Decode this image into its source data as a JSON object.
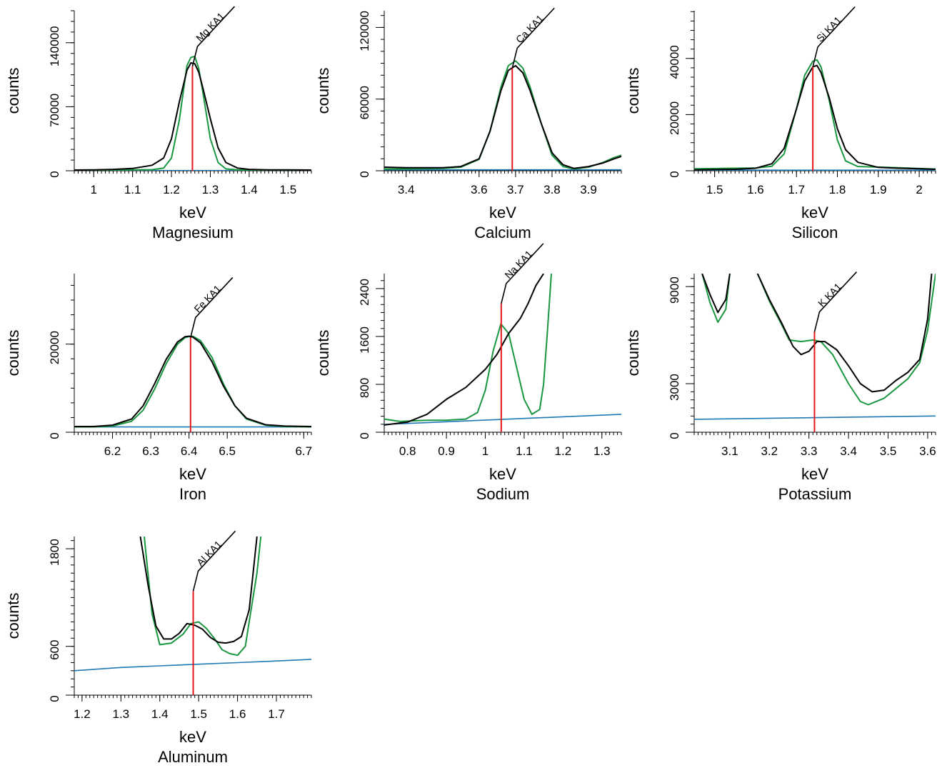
{
  "colors": {
    "measured": "#000000",
    "fit": "#1a9641",
    "background": "#1f77b4",
    "marker": "#e31a1c",
    "axis": "#000000"
  },
  "chart_data": [
    {
      "type": "line",
      "title": "Magnesium",
      "xlabel": "keV",
      "ylabel": "counts",
      "xlim": [
        0.95,
        1.56
      ],
      "ylim": [
        0,
        175000
      ],
      "xticks": [
        1,
        1.1,
        1.2,
        1.3,
        1.4,
        1.5
      ],
      "yticks": [
        0,
        70000,
        140000
      ],
      "line_label": "Mg KA1",
      "line_energy": 1.254,
      "line_height": 114000,
      "series": [
        {
          "name": "measured",
          "x": [
            0.95,
            1.0,
            1.05,
            1.1,
            1.15,
            1.18,
            1.2,
            1.22,
            1.24,
            1.25,
            1.26,
            1.27,
            1.28,
            1.3,
            1.32,
            1.34,
            1.37,
            1.4,
            1.45,
            1.5,
            1.56
          ],
          "y": [
            800,
            1000,
            1500,
            2500,
            6000,
            14000,
            35000,
            75000,
            110000,
            118000,
            117000,
            108000,
            92000,
            57000,
            25000,
            9000,
            3000,
            1500,
            1000,
            900,
            800
          ]
        },
        {
          "name": "fit",
          "x": [
            0.95,
            1.0,
            1.05,
            1.1,
            1.15,
            1.18,
            1.2,
            1.22,
            1.24,
            1.25,
            1.26,
            1.27,
            1.28,
            1.3,
            1.32,
            1.34,
            1.37,
            1.4,
            1.45,
            1.5,
            1.56
          ],
          "y": [
            500,
            700,
            800,
            900,
            1200,
            3000,
            14000,
            55000,
            115000,
            124000,
            125000,
            112000,
            88000,
            35000,
            9000,
            2000,
            900,
            800,
            800,
            700,
            600
          ]
        },
        {
          "name": "background",
          "x": [
            0.95,
            1.56
          ],
          "y": [
            200,
            200
          ]
        }
      ]
    },
    {
      "type": "line",
      "title": "Calcium",
      "xlabel": "keV",
      "ylabel": "counts",
      "xlim": [
        3.34,
        3.99
      ],
      "ylim": [
        0,
        134000
      ],
      "xticks": [
        3.4,
        3.6,
        3.7,
        3.8,
        3.9
      ],
      "yticks": [
        0,
        60000,
        120000
      ],
      "line_label": "Ca KA1",
      "line_energy": 3.691,
      "line_height": 86000,
      "series": [
        {
          "name": "measured",
          "x": [
            3.34,
            3.4,
            3.5,
            3.55,
            3.6,
            3.63,
            3.66,
            3.68,
            3.7,
            3.72,
            3.74,
            3.77,
            3.8,
            3.83,
            3.86,
            3.9,
            3.94,
            3.97,
            3.99
          ],
          "y": [
            3000,
            2500,
            2500,
            3500,
            10000,
            33000,
            67000,
            84000,
            88000,
            82000,
            67000,
            40000,
            15000,
            5000,
            2000,
            3500,
            6500,
            10000,
            12000
          ]
        },
        {
          "name": "fit",
          "x": [
            3.34,
            3.4,
            3.5,
            3.55,
            3.6,
            3.63,
            3.66,
            3.68,
            3.7,
            3.72,
            3.74,
            3.77,
            3.8,
            3.83,
            3.86,
            3.9,
            3.94,
            3.97,
            3.99
          ],
          "y": [
            1500,
            1500,
            2000,
            3000,
            9500,
            33000,
            70000,
            88000,
            92000,
            86000,
            70000,
            40000,
            13000,
            3500,
            1500,
            3000,
            7000,
            11000,
            13000
          ]
        },
        {
          "name": "background",
          "x": [
            3.34,
            3.99
          ],
          "y": [
            800,
            800
          ]
        }
      ]
    },
    {
      "type": "line",
      "title": "Silicon",
      "xlabel": "keV",
      "ylabel": "counts",
      "xlim": [
        1.45,
        2.04
      ],
      "ylim": [
        0,
        57000
      ],
      "xticks": [
        1.5,
        1.6,
        1.7,
        1.8,
        1.9,
        2
      ],
      "yticks": [
        0,
        20000,
        40000
      ],
      "line_label": "Si KA1",
      "line_energy": 1.74,
      "line_height": 37000,
      "series": [
        {
          "name": "measured",
          "x": [
            1.45,
            1.5,
            1.55,
            1.6,
            1.64,
            1.67,
            1.7,
            1.72,
            1.74,
            1.75,
            1.76,
            1.78,
            1.8,
            1.82,
            1.85,
            1.9,
            1.95,
            2.0,
            2.04
          ],
          "y": [
            300,
            400,
            500,
            900,
            2500,
            8000,
            22000,
            32000,
            37000,
            37500,
            35000,
            26000,
            15000,
            7500,
            3000,
            1200,
            900,
            700,
            500
          ]
        },
        {
          "name": "fit",
          "x": [
            1.45,
            1.5,
            1.55,
            1.6,
            1.64,
            1.67,
            1.7,
            1.72,
            1.74,
            1.75,
            1.76,
            1.78,
            1.8,
            1.82,
            1.85,
            1.9,
            1.95,
            2.0,
            2.04
          ],
          "y": [
            700,
            800,
            900,
            1000,
            1600,
            6000,
            22000,
            34000,
            39000,
            39500,
            37000,
            25000,
            11000,
            3500,
            1500,
            1300,
            1100,
            800,
            600
          ]
        },
        {
          "name": "background",
          "x": [
            1.45,
            2.04
          ],
          "y": [
            200,
            200
          ]
        }
      ]
    },
    {
      "type": "line",
      "title": "Iron",
      "xlabel": "keV",
      "ylabel": "counts",
      "xlim": [
        6.1,
        6.72
      ],
      "ylim": [
        0,
        36000
      ],
      "xticks": [
        6.2,
        6.3,
        6.4,
        6.5,
        6.7
      ],
      "yticks": [
        0,
        20000
      ],
      "line_label": "Fe KA1",
      "line_energy": 6.404,
      "line_height": 21500,
      "series": [
        {
          "name": "measured",
          "x": [
            6.1,
            6.15,
            6.2,
            6.25,
            6.28,
            6.31,
            6.34,
            6.37,
            6.39,
            6.4,
            6.41,
            6.43,
            6.46,
            6.49,
            6.52,
            6.55,
            6.6,
            6.65,
            6.72
          ],
          "y": [
            1300,
            1300,
            1600,
            3000,
            6000,
            11000,
            16500,
            20500,
            21700,
            21800,
            21600,
            20300,
            16000,
            10500,
            6000,
            3200,
            1700,
            1400,
            1300
          ]
        },
        {
          "name": "fit",
          "x": [
            6.1,
            6.15,
            6.2,
            6.25,
            6.28,
            6.31,
            6.34,
            6.37,
            6.39,
            6.4,
            6.41,
            6.43,
            6.46,
            6.49,
            6.52,
            6.55,
            6.6,
            6.65,
            6.72
          ],
          "y": [
            1200,
            1200,
            1400,
            2500,
            5000,
            9800,
            15500,
            20000,
            21500,
            21700,
            21800,
            20800,
            17000,
            11000,
            6000,
            3000,
            1600,
            1300,
            1200
          ]
        },
        {
          "name": "background",
          "x": [
            6.1,
            6.72
          ],
          "y": [
            1200,
            1200
          ]
        }
      ]
    },
    {
      "type": "line",
      "title": "Sodium",
      "xlabel": "keV",
      "ylabel": "counts",
      "xlim": [
        0.74,
        1.35
      ],
      "ylim": [
        0,
        2650
      ],
      "xticks": [
        0.8,
        0.9,
        1,
        1.1,
        1.2,
        1.3
      ],
      "yticks": [
        0,
        800,
        1600,
        2400
      ],
      "line_label": "Na KA1",
      "line_energy": 1.041,
      "line_height": 2150,
      "series": [
        {
          "name": "measured",
          "x": [
            0.74,
            0.8,
            0.85,
            0.9,
            0.95,
            1.0,
            1.03,
            1.06,
            1.09,
            1.11,
            1.13,
            1.15
          ],
          "y": [
            120,
            170,
            300,
            550,
            750,
            1050,
            1300,
            1650,
            1900,
            2150,
            2450,
            2650
          ]
        },
        {
          "name": "fit",
          "x": [
            0.74,
            0.78,
            0.85,
            0.9,
            0.95,
            0.98,
            1.0,
            1.02,
            1.04,
            1.06,
            1.08,
            1.1,
            1.12,
            1.14,
            1.15,
            1.16,
            1.17
          ],
          "y": [
            220,
            180,
            200,
            200,
            220,
            330,
            700,
            1350,
            1810,
            1650,
            1100,
            550,
            300,
            380,
            800,
            1700,
            2650
          ]
        },
        {
          "name": "background",
          "x": [
            0.74,
            1.35
          ],
          "y": [
            130,
            300
          ]
        }
      ]
    },
    {
      "type": "line",
      "title": "Potassium",
      "xlabel": "keV",
      "ylabel": "counts",
      "xlim": [
        3.01,
        3.62
      ],
      "ylim": [
        0,
        9800
      ],
      "xticks": [
        3.1,
        3.2,
        3.3,
        3.4,
        3.5,
        3.6
      ],
      "yticks": [
        0,
        3000,
        9000
      ],
      "line_label": "K KA1",
      "line_energy": 3.314,
      "line_height": 6200,
      "series": [
        {
          "name": "measured",
          "x": [
            3.03,
            3.05,
            3.07,
            3.09,
            3.1
          ],
          "y": [
            9800,
            8500,
            7400,
            8200,
            9800
          ]
        },
        {
          "name": "measured",
          "x": [
            3.17,
            3.2,
            3.23,
            3.26,
            3.28,
            3.3,
            3.32,
            3.34,
            3.37,
            3.4,
            3.43,
            3.46,
            3.49,
            3.52,
            3.55,
            3.58,
            3.6,
            3.61
          ],
          "y": [
            9800,
            8200,
            6800,
            5300,
            4800,
            5000,
            5600,
            5600,
            5100,
            4100,
            3000,
            2500,
            2600,
            3200,
            3700,
            4500,
            7000,
            9800
          ]
        },
        {
          "name": "fit",
          "x": [
            3.03,
            3.05,
            3.07,
            3.09,
            3.1
          ],
          "y": [
            9800,
            8000,
            6800,
            7600,
            9800
          ]
        },
        {
          "name": "fit",
          "x": [
            3.17,
            3.2,
            3.23,
            3.25,
            3.28,
            3.31,
            3.33,
            3.36,
            3.4,
            3.43,
            3.45,
            3.49,
            3.52,
            3.55,
            3.58,
            3.6,
            3.62
          ],
          "y": [
            9800,
            8100,
            6700,
            5700,
            5600,
            5700,
            5600,
            4800,
            3000,
            1900,
            1700,
            2100,
            2700,
            3300,
            4300,
            6300,
            9800
          ]
        },
        {
          "name": "background",
          "x": [
            3.01,
            3.62
          ],
          "y": [
            800,
            1000
          ]
        }
      ]
    },
    {
      "type": "line",
      "title": "Aluminum",
      "xlabel": "keV",
      "ylabel": "counts",
      "xlim": [
        1.18,
        1.79
      ],
      "ylim": [
        0,
        1950
      ],
      "xticks": [
        1.2,
        1.3,
        1.4,
        1.5,
        1.6,
        1.7
      ],
      "yticks": [
        0,
        600,
        1800
      ],
      "line_label": "Al KA1",
      "line_energy": 1.486,
      "line_height": 1280,
      "series": [
        {
          "name": "measured",
          "x": [
            1.35,
            1.37,
            1.39,
            1.41,
            1.43,
            1.45,
            1.47,
            1.49,
            1.51,
            1.53,
            1.55,
            1.57,
            1.59,
            1.61,
            1.63,
            1.64,
            1.65
          ],
          "y": [
            1950,
            1350,
            850,
            690,
            690,
            760,
            880,
            860,
            810,
            710,
            650,
            640,
            660,
            720,
            1050,
            1500,
            1950
          ]
        },
        {
          "name": "fit",
          "x": [
            1.36,
            1.38,
            1.4,
            1.43,
            1.46,
            1.48,
            1.5,
            1.52,
            1.54,
            1.56,
            1.58,
            1.6,
            1.62,
            1.63,
            1.65,
            1.66
          ],
          "y": [
            1950,
            1000,
            620,
            640,
            750,
            880,
            900,
            820,
            700,
            560,
            510,
            490,
            600,
            900,
            1500,
            1950
          ]
        },
        {
          "name": "background",
          "x": [
            1.18,
            1.3,
            1.4,
            1.5,
            1.6,
            1.7,
            1.79
          ],
          "y": [
            300,
            340,
            360,
            380,
            400,
            420,
            440
          ]
        }
      ]
    }
  ]
}
